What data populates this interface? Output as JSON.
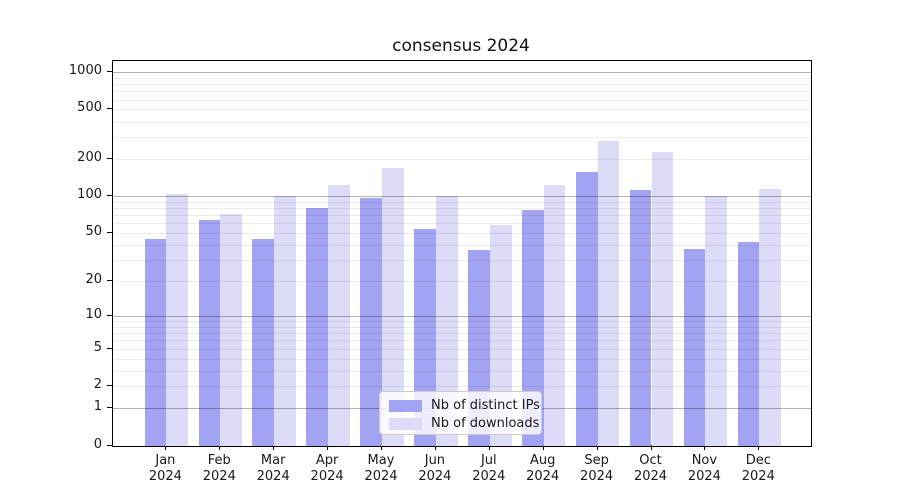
{
  "title": "consensus 2024",
  "chart_data": {
    "type": "bar",
    "title": "consensus 2024",
    "categories": [
      "Jan",
      "Feb",
      "Mar",
      "Apr",
      "May",
      "Jun",
      "Jul",
      "Aug",
      "Sep",
      "Oct",
      "Nov",
      "Dec"
    ],
    "category_year": "2024",
    "series": [
      {
        "name": "Nb of distinct IPs",
        "color": "#a3a3f3",
        "values": [
          45,
          64,
          45,
          80,
          96,
          54,
          36,
          77,
          158,
          111,
          37,
          42
        ]
      },
      {
        "name": "Nb of downloads",
        "color": "#dcdcf8",
        "values": [
          103,
          72,
          101,
          124,
          170,
          100,
          58,
          124,
          280,
          228,
          100,
          114
        ]
      }
    ],
    "xlabel": "",
    "ylabel": "",
    "yscale": "log1p",
    "y_tick_values": [
      0,
      1,
      2,
      5,
      10,
      20,
      50,
      100,
      200,
      500,
      1000
    ],
    "ylim": [
      0,
      1220
    ],
    "grid": "major and minor horizontal gridlines, drawn over bars",
    "legend_position": "lower center"
  },
  "colors": {
    "series_dark": "#a3a3f3",
    "series_light": "#dcdcf8",
    "major_grid": "#b0b0b0",
    "minor_grid": "#ececec",
    "axis": "#000000",
    "background": "#ffffff"
  }
}
